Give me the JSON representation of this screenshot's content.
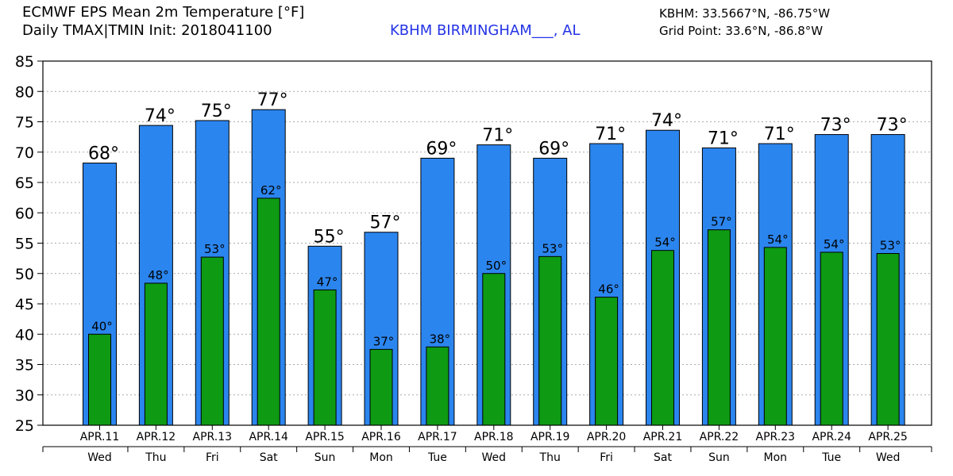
{
  "header": {
    "title_line1": "ECMWF EPS Mean 2m Temperature [°F]",
    "title_line2": "Daily TMAX|TMIN Init: 2018041100",
    "station": "KBHM BIRMINGHAM___, AL",
    "coord_line1": "KBHM: 33.5667°N, -86.75°W",
    "coord_line2": "Grid Point: 33.6°N, -86.8°W"
  },
  "colors": {
    "tmax_bar": "#2b85ee",
    "tmin_bar": "#0e9a13",
    "grid": "#aaaaaa"
  },
  "chart_data": {
    "type": "bar",
    "categories": [
      "APR.11",
      "APR.12",
      "APR.13",
      "APR.14",
      "APR.15",
      "APR.16",
      "APR.17",
      "APR.18",
      "APR.19",
      "APR.20",
      "APR.21",
      "APR.22",
      "APR.23",
      "APR.24",
      "APR.25"
    ],
    "weekdays": [
      "Wed",
      "Thu",
      "Fri",
      "Sat",
      "Sun",
      "Mon",
      "Tue",
      "Wed",
      "Thu",
      "Fri",
      "Sat",
      "Sun",
      "Mon",
      "Tue",
      "Wed"
    ],
    "series": [
      {
        "name": "TMAX",
        "values": [
          68.2,
          74.4,
          75.2,
          77.0,
          54.5,
          56.8,
          69.0,
          71.2,
          69.0,
          71.4,
          73.6,
          70.7,
          71.4,
          72.9,
          72.9
        ],
        "labels": [
          "68°",
          "74°",
          "75°",
          "77°",
          "55°",
          "57°",
          "69°",
          "71°",
          "69°",
          "71°",
          "74°",
          "71°",
          "71°",
          "73°",
          "73°"
        ]
      },
      {
        "name": "TMIN",
        "values": [
          40.0,
          48.4,
          52.7,
          62.4,
          47.3,
          37.5,
          37.9,
          50.0,
          52.8,
          46.1,
          53.8,
          57.2,
          54.3,
          53.5,
          53.3
        ],
        "labels": [
          "40°",
          "48°",
          "53°",
          "62°",
          "47°",
          "37°",
          "38°",
          "50°",
          "53°",
          "46°",
          "54°",
          "57°",
          "54°",
          "54°",
          "53°"
        ]
      }
    ],
    "yticks": [
      "85",
      "80",
      "75",
      "70",
      "65",
      "60",
      "55",
      "50",
      "45",
      "40",
      "35",
      "30",
      "25"
    ],
    "ylim": [
      25,
      85
    ],
    "grid": true,
    "xlabel": "",
    "ylabel": ""
  }
}
